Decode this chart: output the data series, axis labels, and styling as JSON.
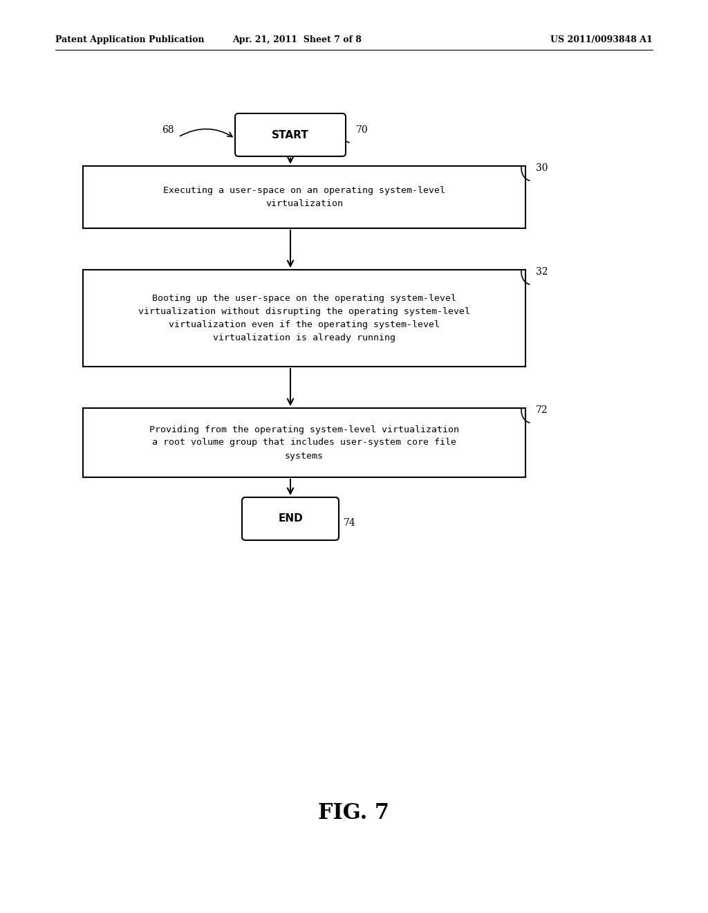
{
  "bg_color": "#ffffff",
  "header_left": "Patent Application Publication",
  "header_mid": "Apr. 21, 2011  Sheet 7 of 8",
  "header_right": "US 2011/0093848 A1",
  "fig_label": "FIG. 7",
  "start_label": "START",
  "end_label": "END",
  "box1_text": "Executing a user-space on an operating system-level\nvirtualization",
  "box2_text": "Booting up the user-space on the operating system-level\nvirtualization without disrupting the operating system-level\nvirtualization even if the operating system-level\nvirtualization is already running",
  "box3_text": "Providing from the operating system-level virtualization\na root volume group that includes user-system core file\nsystems",
  "text_color": "#000000",
  "box_edge_color": "#000000",
  "arrow_color": "#000000",
  "label_68": "68",
  "label_70": "70",
  "label_30": "30",
  "label_32": "32",
  "label_72": "72",
  "label_74": "74"
}
